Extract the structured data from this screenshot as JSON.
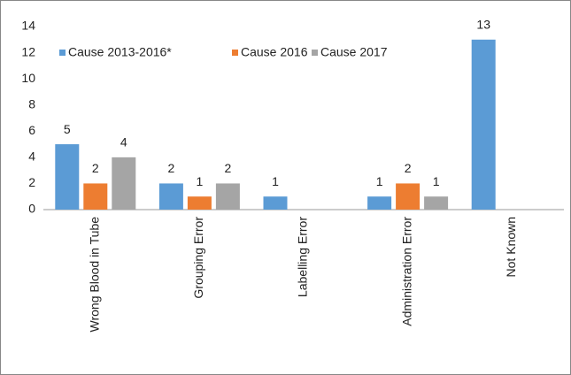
{
  "chart_data": {
    "type": "bar",
    "categories": [
      "Wrong Blood in Tube",
      "Grouping Error",
      "Labelling Error",
      "Administration Error",
      "Not Known"
    ],
    "series": [
      {
        "name": "Cause 2013-2016*",
        "color": "#5b9bd5",
        "values": [
          5,
          2,
          1,
          1,
          13
        ]
      },
      {
        "name": "Cause 2016",
        "color": "#ed7d31",
        "values": [
          2,
          1,
          null,
          2,
          null
        ]
      },
      {
        "name": "Cause 2017",
        "color": "#a5a5a5",
        "values": [
          4,
          2,
          null,
          1,
          null
        ]
      }
    ],
    "ylim": [
      0,
      14
    ],
    "yticks": [
      0,
      2,
      4,
      6,
      8,
      10,
      12,
      14
    ],
    "grid": false
  }
}
